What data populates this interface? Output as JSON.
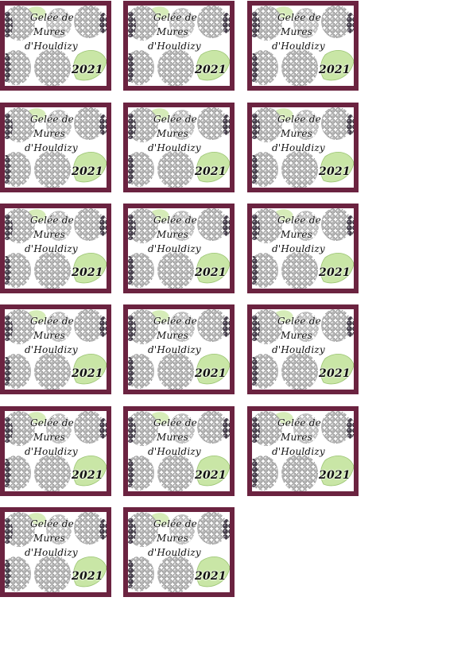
{
  "label": {
    "line1": "Gelée de",
    "line2": "Mures",
    "line3": "d'Houldizy",
    "year": "2021"
  },
  "colors": {
    "border": "#6b2340",
    "berry": "#9a9a9a",
    "berry_dark": "#3a3340",
    "leaf": "#c9e6a6"
  },
  "icons": [
    "blackberry-icon",
    "leaf-icon"
  ],
  "sheet": {
    "label_count": 17
  }
}
